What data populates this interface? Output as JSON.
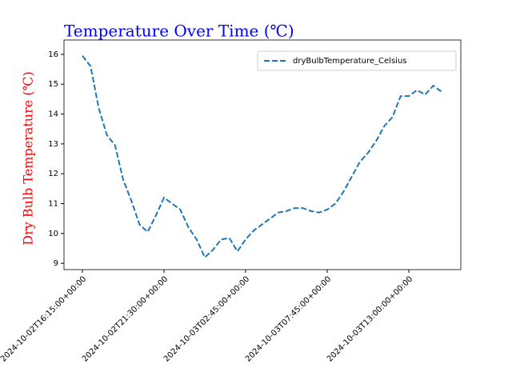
{
  "chart_data": {
    "type": "line",
    "title": "Temperature Over Time (℃)",
    "ylabel": "Dry Bulb Temperature (℃)",
    "categories": [
      "2024-10-02T16:15:00+00:00",
      null,
      null,
      null,
      null,
      null,
      null,
      null,
      null,
      null,
      "2024-10-02T21:30:00+00:00",
      null,
      null,
      null,
      null,
      null,
      null,
      null,
      null,
      null,
      "2024-10-03T02:45:00+00:00",
      null,
      null,
      null,
      null,
      null,
      null,
      null,
      null,
      null,
      "2024-10-03T07:45:00+00:00",
      null,
      null,
      null,
      null,
      null,
      null,
      null,
      null,
      null,
      "2024-10-03T13:00:00+00:00",
      null,
      null,
      null,
      null
    ],
    "series": [
      {
        "name": "dryBulbTemperature_Celsius",
        "color": "#1f77b4",
        "values": [
          15.95,
          15.6,
          14.2,
          13.3,
          12.95,
          11.8,
          11.1,
          10.3,
          10.05,
          10.6,
          11.2,
          11.0,
          10.8,
          10.2,
          9.8,
          9.2,
          9.45,
          9.8,
          9.85,
          9.4,
          9.8,
          10.1,
          10.3,
          10.5,
          10.7,
          10.75,
          10.85,
          10.85,
          10.75,
          10.7,
          10.8,
          11.0,
          11.4,
          11.9,
          12.4,
          12.7,
          13.1,
          13.6,
          13.9,
          14.6,
          14.6,
          14.8,
          14.65,
          14.95,
          14.75
        ]
      }
    ],
    "ylim": [
      8.79,
      16.48
    ],
    "yticks": [
      9,
      10,
      11,
      12,
      13,
      14,
      15,
      16
    ],
    "legend": "upper right"
  }
}
